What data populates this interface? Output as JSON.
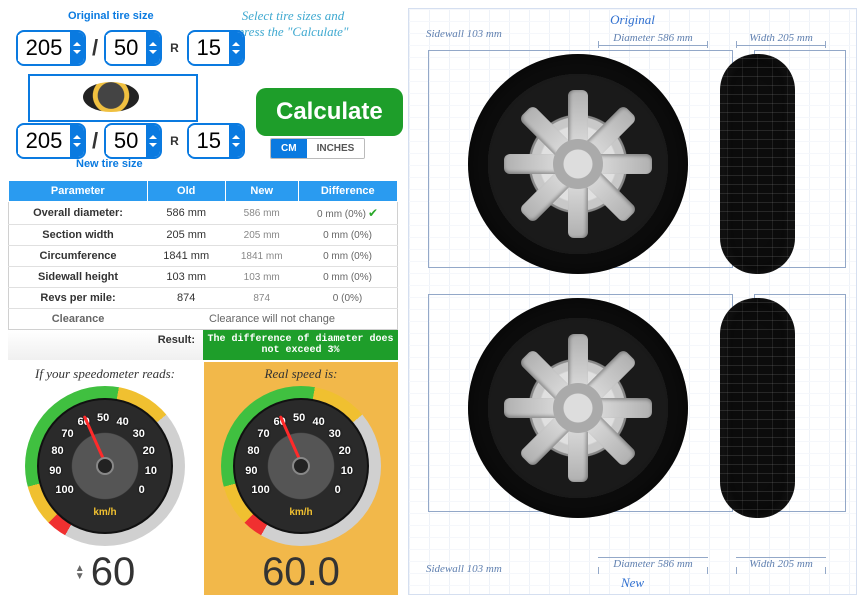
{
  "labels": {
    "original": "Original tire size",
    "new": "New tire size",
    "hint": "Select tire sizes and press the \"Calculate\"",
    "calculate": "Calculate",
    "unit_cm": "CM",
    "unit_in": "INCHES",
    "result": "Result:",
    "result_msg": "The difference of diameter does not exceed 3%",
    "speedo_reads": "If your speedometer reads:",
    "real_speed": "Real speed is:",
    "sec_original": "Original",
    "sec_new": "New"
  },
  "inputs": {
    "orig": {
      "width": "205",
      "ratio": "50",
      "rim": "15"
    },
    "new": {
      "width": "205",
      "ratio": "50",
      "rim": "15"
    }
  },
  "units_active": "cm",
  "table": {
    "headers": [
      "Parameter",
      "Old",
      "New",
      "Difference"
    ],
    "rows": [
      {
        "param": "Overall diameter:",
        "old": "586 mm",
        "new": "586 mm",
        "diff": "0 mm (0%)",
        "ok": true
      },
      {
        "param": "Section width",
        "old": "205 mm",
        "new": "205 mm",
        "diff": "0 mm (0%)"
      },
      {
        "param": "Circumference",
        "old": "1841 mm",
        "new": "1841 mm",
        "diff": "0 mm (0%)"
      },
      {
        "param": "Sidewall height",
        "old": "103 mm",
        "new": "103 mm",
        "diff": "0 mm (0%)"
      },
      {
        "param": "Revs per mile:",
        "old": "874",
        "new": "874",
        "diff": "0 (0%)"
      },
      {
        "param": "Clearance",
        "old": "",
        "new": "Clearance will not change",
        "diff": "",
        "span": true
      }
    ]
  },
  "gauge": {
    "ticks": [
      0,
      10,
      20,
      30,
      40,
      50,
      60,
      70,
      80,
      90,
      100
    ],
    "unit": "km/h",
    "value_left": "60",
    "value_right": "60.0",
    "needle_deg": 115
  },
  "diagram": {
    "orig": {
      "sidewall": "Sidewall 103 mm",
      "diameter": "Diameter 586 mm",
      "width": "Width 205 mm"
    },
    "new": {
      "sidewall": "Sidewall 103 mm",
      "diameter": "Diameter 586 mm",
      "width": "Width 205 mm"
    }
  },
  "colors": {
    "blue": "#0a7ae0",
    "green": "#1e9e2a",
    "highlight": "#f2b84a",
    "label_blue": "#3070d0"
  }
}
